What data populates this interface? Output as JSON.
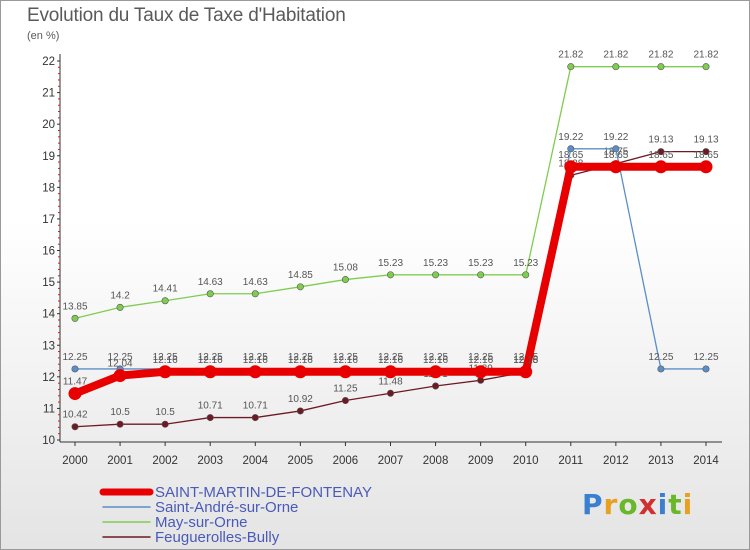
{
  "header": {
    "title": "Evolution du Taux de Taxe d'Habitation",
    "unit": "(en %)"
  },
  "logo": {
    "text": "Proxiti",
    "colors": [
      "#3a7fd0",
      "#e8a020",
      "#6ab82a",
      "#d03030",
      "#3a7fd0",
      "#6ab82a",
      "#e8a020"
    ]
  },
  "chart_data": {
    "type": "line",
    "x": [
      "2000",
      "2001",
      "2002",
      "2003",
      "2004",
      "2005",
      "2006",
      "2007",
      "2008",
      "2009",
      "2010",
      "2011",
      "2012",
      "2013",
      "2014"
    ],
    "ylim": [
      10,
      22
    ],
    "yticks": [
      "10",
      "11",
      "12",
      "13",
      "14",
      "15",
      "16",
      "17",
      "18",
      "19",
      "20",
      "21",
      "22"
    ],
    "grid": false,
    "legend_position": "bottom-left",
    "series": [
      {
        "name": "Feuguerolles-Bully",
        "color": "#6e1a24",
        "values": [
          10.42,
          10.5,
          10.5,
          10.71,
          10.71,
          10.92,
          11.25,
          11.48,
          11.71,
          11.89,
          12.15,
          18.38,
          18.75,
          19.13,
          19.13
        ],
        "labels": [
          "10.42",
          "10.5",
          "10.5",
          "10.71",
          "10.71",
          "10.92",
          "11.25",
          "11.48",
          "11.71",
          "11.89",
          "12.15",
          "18.38",
          "18.75",
          "19.13",
          "19.13"
        ]
      },
      {
        "name": "May-sur-Orne",
        "color": "#80cc50",
        "values": [
          13.85,
          14.2,
          14.41,
          14.63,
          14.63,
          14.85,
          15.08,
          15.23,
          15.23,
          15.23,
          15.23,
          21.82,
          21.82,
          21.82,
          21.82
        ],
        "labels": [
          "13.85",
          "14.2",
          "14.41",
          "14.63",
          "14.63",
          "14.85",
          "15.08",
          "15.23",
          "15.23",
          "15.23",
          "15.23",
          "21.82",
          "21.82",
          "21.82",
          "21.82"
        ]
      },
      {
        "name": "Saint-André-sur-Orne",
        "color": "#5b8ec8",
        "values": [
          12.25,
          12.25,
          12.25,
          12.25,
          12.25,
          12.25,
          12.25,
          12.25,
          12.25,
          12.25,
          12.25,
          19.22,
          19.22,
          12.25,
          12.25
        ],
        "labels": [
          "12.25",
          "12.25",
          "12.25",
          "12.25",
          "12.25",
          "12.25",
          "12.25",
          "12.25",
          "12.25",
          "12.25",
          "12.25",
          "19.22",
          "19.22",
          "12.25",
          "12.25"
        ]
      },
      {
        "name": "SAINT-MARTIN-DE-FONTENAY",
        "color": "#e80000",
        "values": [
          11.47,
          12.04,
          12.16,
          12.16,
          12.16,
          12.16,
          12.16,
          12.16,
          12.16,
          12.16,
          12.16,
          18.65,
          18.65,
          18.65,
          18.65
        ],
        "labels": [
          "11.47",
          "12.04",
          "12.16",
          "12.16",
          "12.16",
          "12.16",
          "12.16",
          "12.16",
          "12.16",
          "12.16",
          "12.16",
          "18.65",
          "18.65",
          "18.65",
          "18.65"
        ]
      }
    ],
    "legend": [
      {
        "label": "SAINT-MARTIN-DE-FONTENAY",
        "color": "#e80000",
        "width": 7
      },
      {
        "label": "Saint-André-sur-Orne",
        "color": "#5b8ec8",
        "width": 1.5
      },
      {
        "label": "May-sur-Orne",
        "color": "#80cc50",
        "width": 1.5
      },
      {
        "label": "Feuguerolles-Bully",
        "color": "#6e1a24",
        "width": 1.5
      }
    ]
  }
}
